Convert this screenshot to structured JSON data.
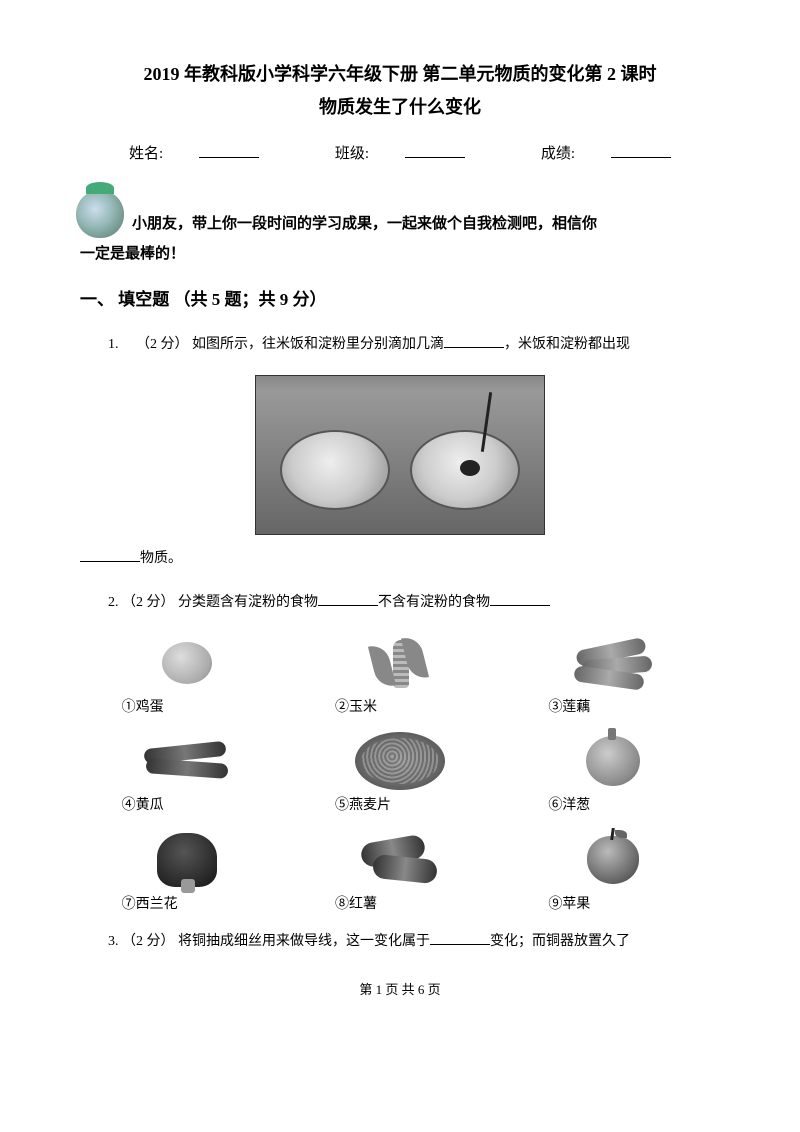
{
  "title": {
    "line1": "2019 年教科版小学科学六年级下册 第二单元物质的变化第 2 课时",
    "line2": "物质发生了什么变化"
  },
  "info": {
    "name_label": "姓名:",
    "class_label": "班级:",
    "grade_label": "成绩:"
  },
  "intro": {
    "part1": "小朋友，带上你一段时间的学习成果，一起来做个自我检测吧，相信你",
    "part2": "一定是最棒的！"
  },
  "section1": {
    "heading": "一、 填空题 （共 5 题；共 9 分）"
  },
  "q1": {
    "num": "1.",
    "pts": "（2 分）",
    "text_a": "如图所示，往米饭和淀粉里分别滴加几滴",
    "text_b": "，米饭和淀粉都出现",
    "text_c": "物质。"
  },
  "q2": {
    "num": "2.",
    "pts": "（2 分）",
    "text_a": "分类题含有淀粉的食物",
    "text_b": "不含有淀粉的食物"
  },
  "foods": {
    "f1": "①鸡蛋",
    "f2": "②玉米",
    "f3": "③莲藕",
    "f4": "④黄瓜",
    "f5": "⑤燕麦片",
    "f6": "⑥洋葱",
    "f7": "⑦西兰花",
    "f8": "⑧红薯",
    "f9": "⑨苹果"
  },
  "q3": {
    "num": "3.",
    "pts": "（2 分）",
    "text_a": "将铜抽成细丝用来做导线，这一变化属于",
    "text_b": "变化；而铜器放置久了"
  },
  "footer": "第 1 页 共 6 页"
}
